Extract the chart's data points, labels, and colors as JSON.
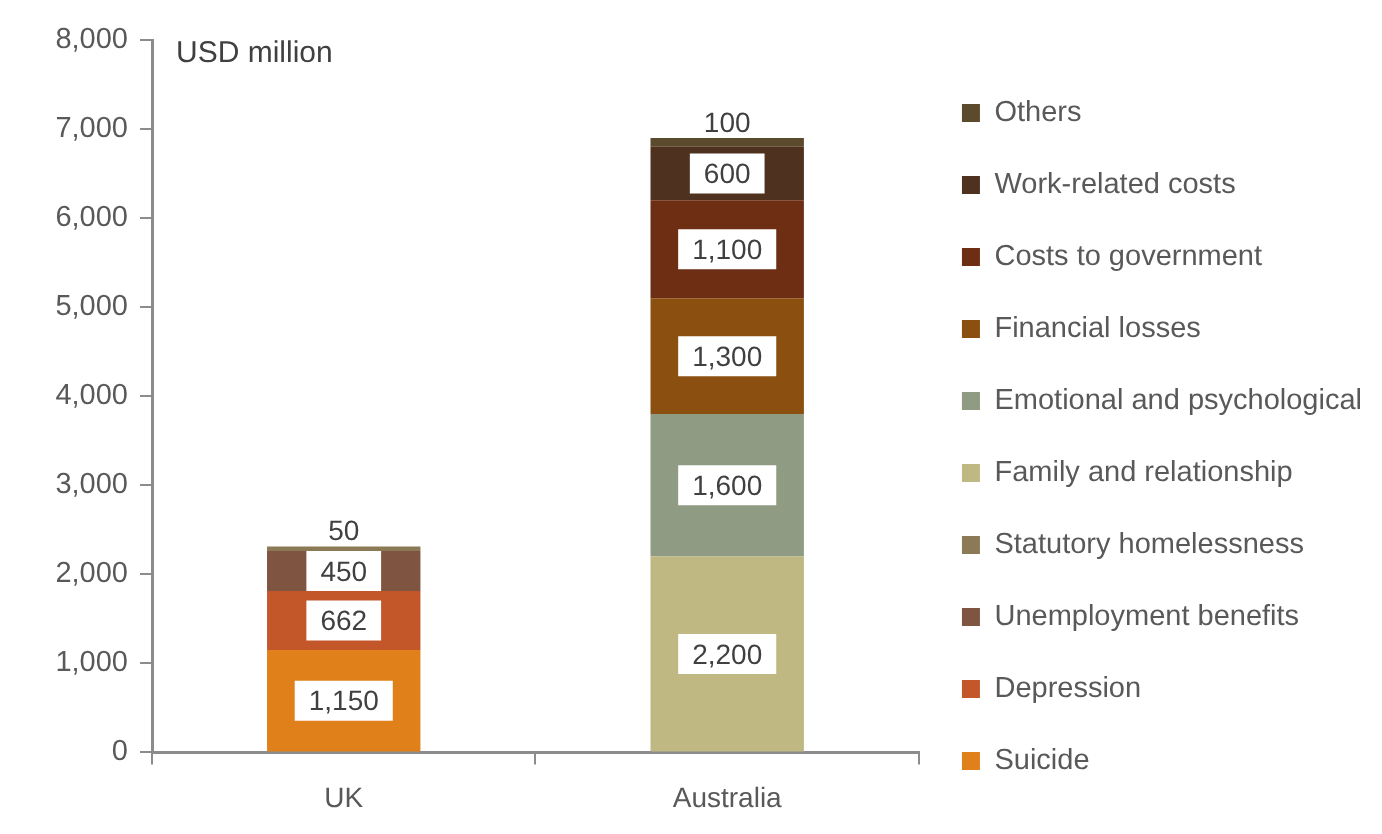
{
  "chart_data": {
    "type": "bar",
    "ylabel": "USD million",
    "categories": [
      "UK",
      "Australia"
    ],
    "stacked": true,
    "series": [
      {
        "name": "Suicide",
        "color": "#e0801a",
        "values": [
          1150,
          null
        ],
        "value_labels": [
          "1,150",
          null
        ]
      },
      {
        "name": "Depression",
        "color": "#c4572a",
        "values": [
          662,
          null
        ],
        "value_labels": [
          "662",
          null
        ]
      },
      {
        "name": "Unemployment benefits",
        "color": "#7f5440",
        "values": [
          450,
          null
        ],
        "value_labels": [
          "450",
          null
        ]
      },
      {
        "name": "Statutory homelessness",
        "color": "#8c7a56",
        "values": [
          50,
          null
        ],
        "value_labels": [
          "50",
          null
        ]
      },
      {
        "name": "Family and relationship",
        "color": "#bfb882",
        "values": [
          null,
          2200
        ],
        "value_labels": [
          null,
          "2,200"
        ]
      },
      {
        "name": "Emotional and psychological",
        "color": "#8f9c83",
        "values": [
          null,
          1600
        ],
        "value_labels": [
          null,
          "1,600"
        ]
      },
      {
        "name": "Financial losses",
        "color": "#8b5010",
        "values": [
          null,
          1300
        ],
        "value_labels": [
          null,
          "1,300"
        ]
      },
      {
        "name": "Costs to government",
        "color": "#6e2e14",
        "values": [
          null,
          1100
        ],
        "value_labels": [
          null,
          "1,100"
        ]
      },
      {
        "name": "Work-related costs",
        "color": "#4f3120",
        "values": [
          null,
          600
        ],
        "value_labels": [
          null,
          "600"
        ]
      },
      {
        "name": "Others",
        "color": "#5b4a2c",
        "values": [
          null,
          100
        ],
        "value_labels": [
          null,
          "100"
        ]
      }
    ],
    "ylim": [
      0,
      8000
    ],
    "yticks": [
      0,
      {
        "value": 1000,
        "label": "1,000"
      },
      {
        "value": 2000,
        "label": "2,000"
      },
      {
        "value": 3000,
        "label": "3,000"
      },
      {
        "value": 4000,
        "label": "4,000"
      },
      {
        "value": 5000,
        "label": "5,000"
      },
      {
        "value": 6000,
        "label": "6,000"
      },
      {
        "value": 7000,
        "label": "7,000"
      },
      {
        "value": 8000,
        "label": "8,000"
      }
    ],
    "grid": false,
    "legend": "right"
  }
}
